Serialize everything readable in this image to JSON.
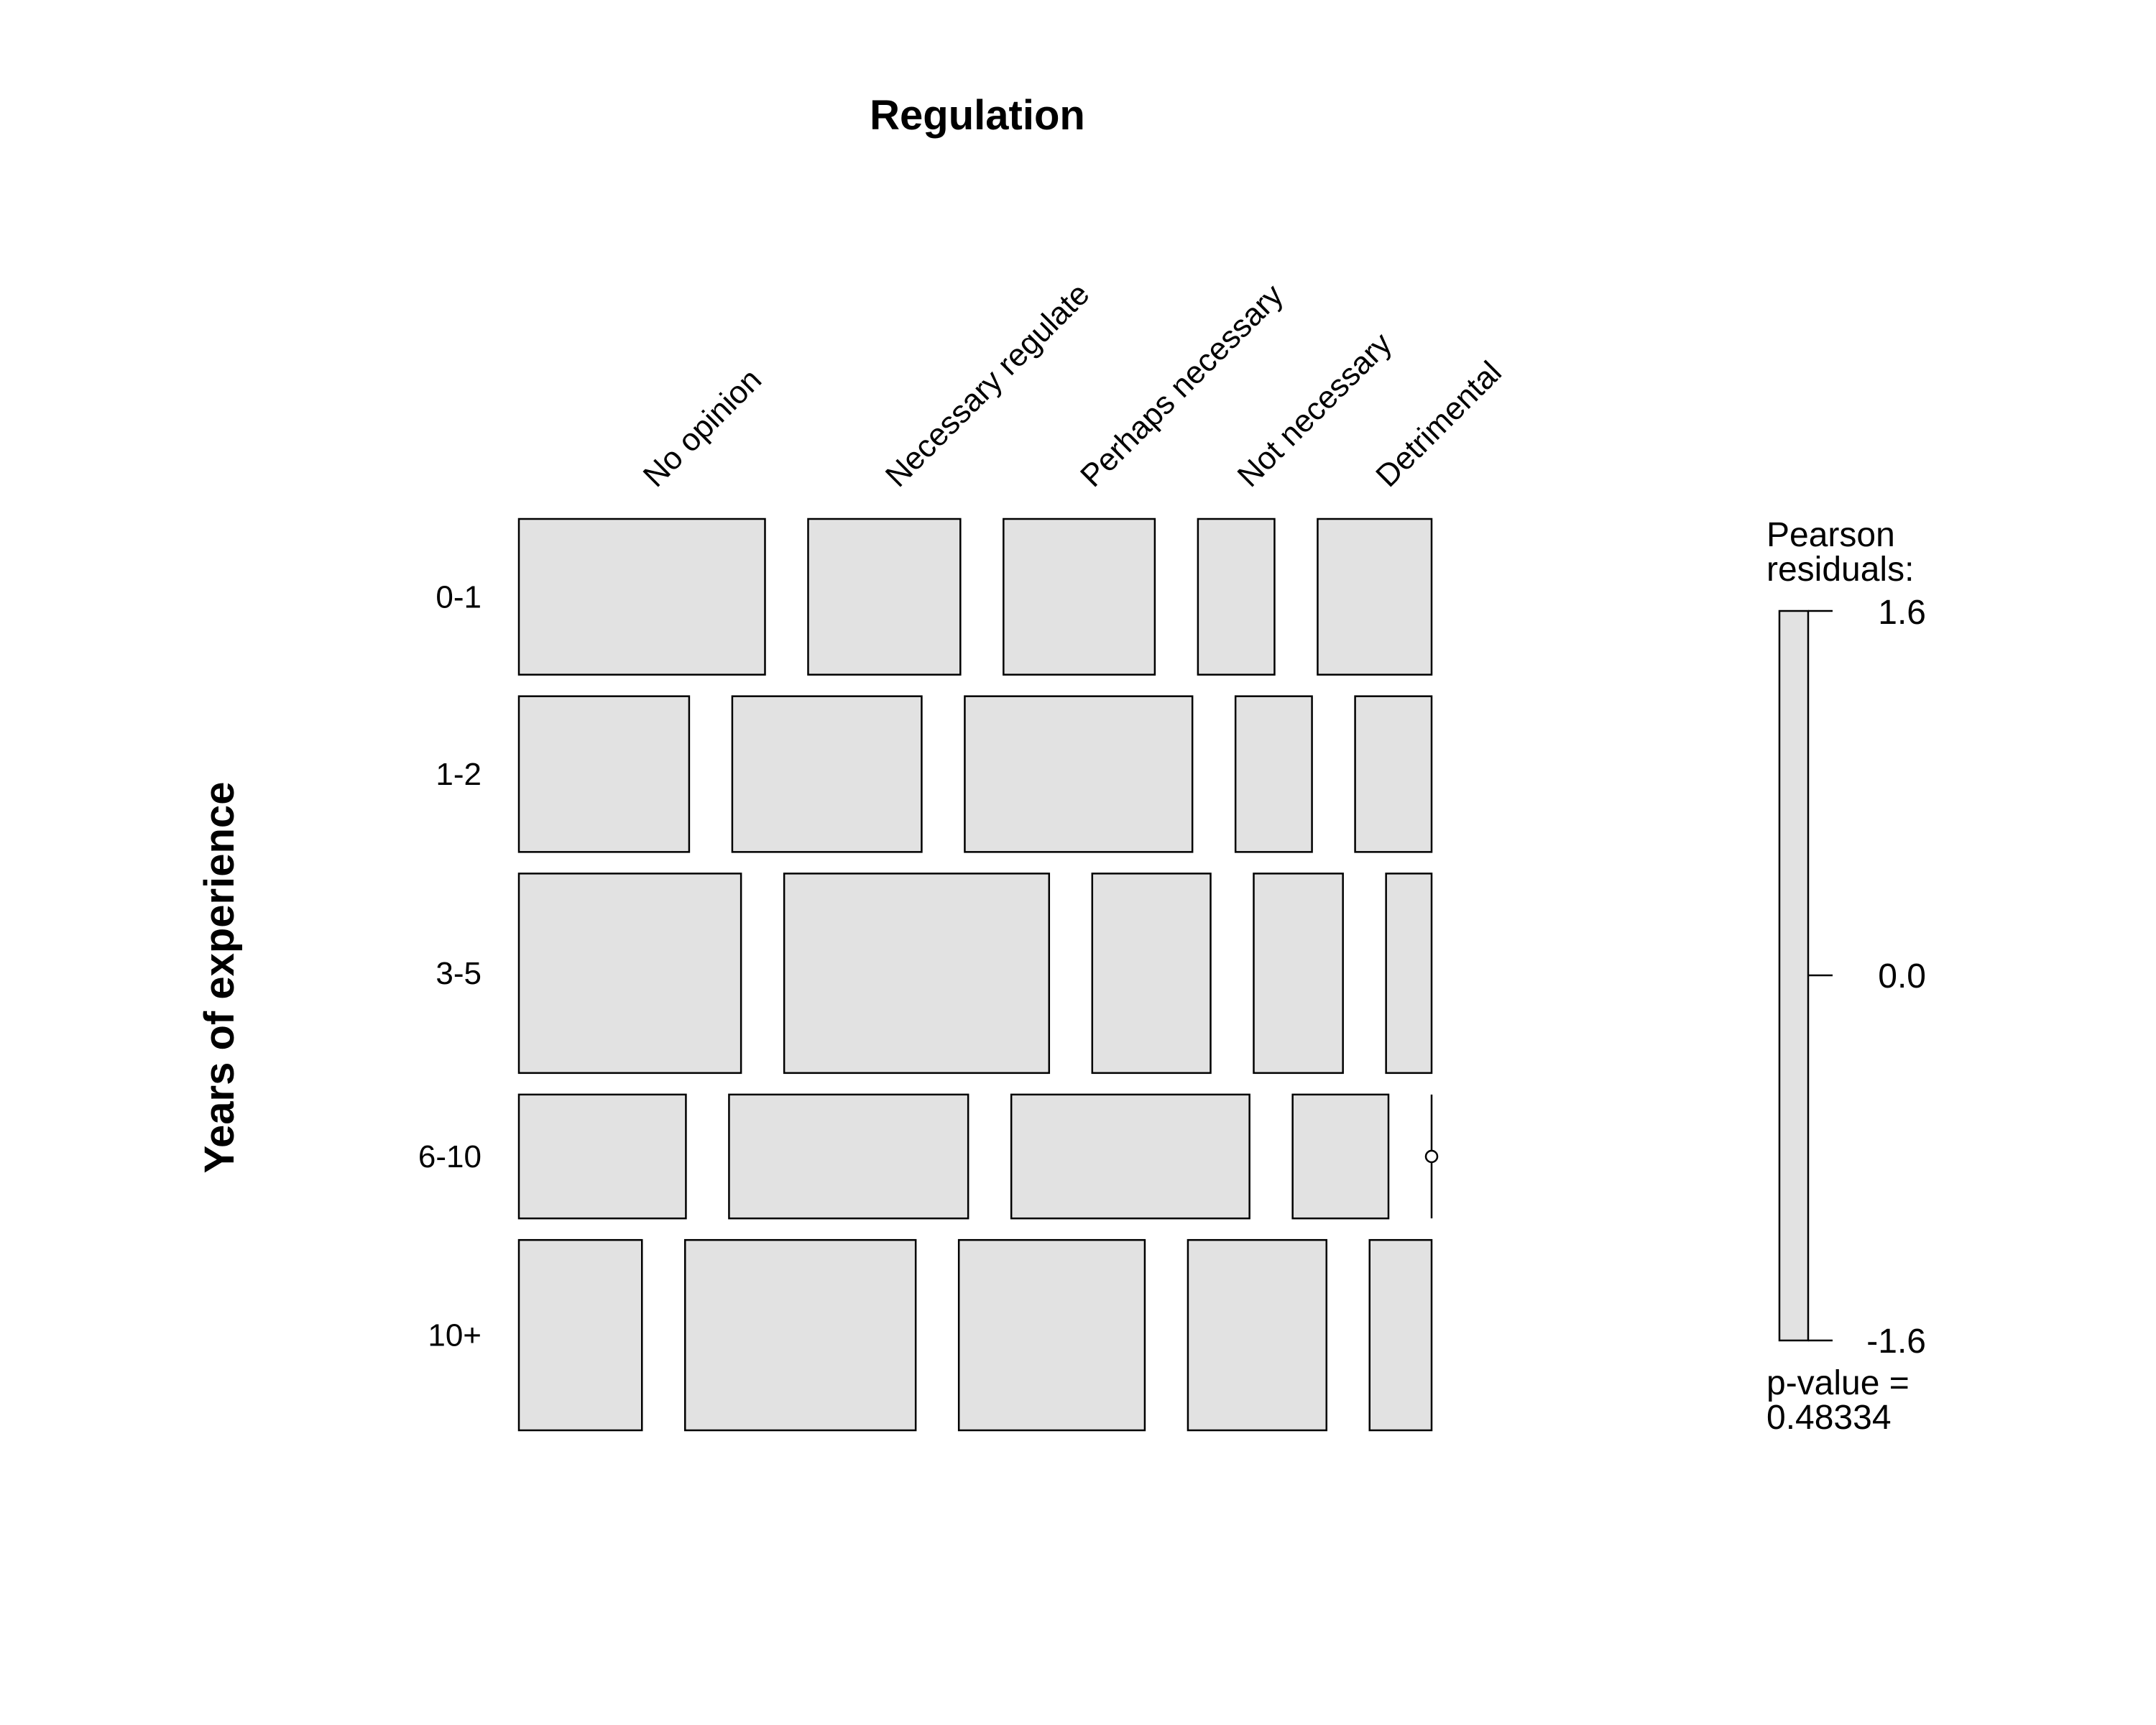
{
  "chart_data": {
    "type": "mosaic",
    "title": "Regulation",
    "ylabel": "Years of experience",
    "column_variable": "Regulation",
    "row_variable": "Years of experience",
    "columns": [
      "No opinion",
      "Necessary regulate",
      "Perhaps necessary",
      "Not necessary",
      "Detrimental"
    ],
    "rows": [
      "0-1",
      "1-2",
      "3-5",
      "6-10",
      "10+"
    ],
    "row_proportions": [
      0.171,
      0.171,
      0.219,
      0.136,
      0.209
    ],
    "cell_proportions_within_row": [
      [
        0.27,
        0.167,
        0.166,
        0.084,
        0.125
      ],
      [
        0.187,
        0.208,
        0.25,
        0.084,
        0.084
      ],
      [
        0.244,
        0.291,
        0.13,
        0.098,
        0.05
      ],
      [
        0.183,
        0.262,
        0.261,
        0.105,
        0.0
      ],
      [
        0.135,
        0.253,
        0.204,
        0.152,
        0.068
      ]
    ],
    "legend": {
      "title_line1": "Pearson",
      "title_line2": "residuals:",
      "max": "1.6",
      "mid": "0.0",
      "min": "-1.6",
      "range": [
        -1.6,
        1.6
      ],
      "fill_color": "#e2e2e2"
    },
    "pvalue_line1": "p-value =",
    "pvalue_line2": "0.48334",
    "tile_fill": "#e2e2e2",
    "stroke_color": "#000000"
  }
}
